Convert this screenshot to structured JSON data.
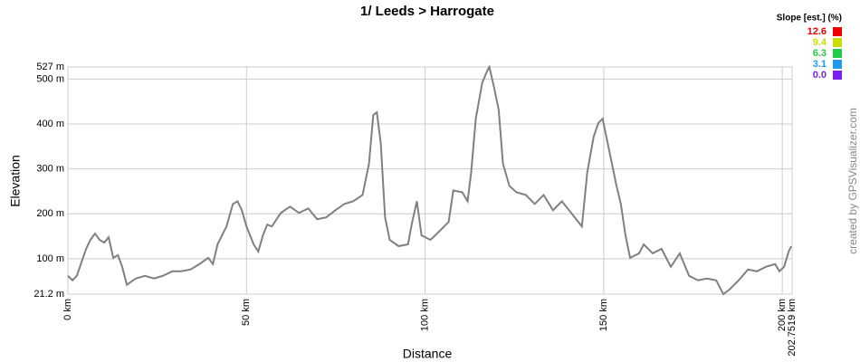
{
  "chart_data": {
    "type": "line",
    "title": "1/ Leeds > Harrogate",
    "x_label": "Distance",
    "y_label": "Elevation",
    "credit": "created by GPSVisualizer.com",
    "slope_legend": {
      "title": "Slope [est.] (%)",
      "items": [
        {
          "label": "12.6",
          "color": "#ee0000"
        },
        {
          "label": "9.4",
          "color": "#ccdd00"
        },
        {
          "label": "6.3",
          "color": "#22cc44"
        },
        {
          "label": "3.1",
          "color": "#2299ee"
        },
        {
          "label": "0.0",
          "color": "#7722ee"
        }
      ]
    },
    "x": [
      0,
      1.3,
      2.5,
      3.8,
      5.1,
      6.3,
      7.6,
      8.9,
      10.2,
      11.4,
      12.7,
      14.0,
      15.2,
      16.5,
      19.0,
      21.6,
      24.1,
      26.6,
      29.2,
      31.7,
      34.3,
      36.8,
      39.3,
      40.6,
      41.9,
      44.4,
      46.2,
      47.5,
      48.7,
      50.0,
      52.0,
      53.3,
      54.6,
      55.8,
      57.1,
      59.6,
      62.2,
      64.7,
      67.3,
      69.8,
      72.3,
      74.9,
      77.4,
      79.9,
      82.5,
      84.3,
      85.5,
      86.5,
      87.6,
      88.8,
      90.1,
      92.6,
      95.2,
      96.4,
      97.7,
      99.0,
      101.5,
      104.1,
      106.6,
      107.9,
      110.4,
      111.9,
      112.9,
      114.2,
      116.0,
      117.5,
      118.0,
      119.3,
      120.6,
      121.8,
      123.6,
      125.6,
      128.2,
      130.7,
      133.2,
      135.8,
      138.3,
      140.9,
      143.9,
      145.4,
      147.2,
      148.5,
      149.7,
      151.0,
      152.3,
      153.6,
      154.8,
      156.1,
      157.4,
      159.9,
      161.2,
      163.7,
      166.2,
      168.8,
      171.3,
      173.9,
      176.4,
      178.9,
      181.5,
      183.5,
      185.3,
      187.8,
      190.4,
      192.9,
      195.4,
      198.0,
      199.2,
      200.5,
      201.8,
      202.5
    ],
    "series": [
      {
        "color": "#808080",
        "values": [
          62,
          52,
          62,
          92,
          122,
          142,
          156,
          142,
          136,
          148,
          102,
          108,
          82,
          42,
          56,
          62,
          56,
          62,
          72,
          72,
          76,
          88,
          102,
          88,
          132,
          172,
          222,
          228,
          208,
          172,
          132,
          116,
          152,
          176,
          172,
          202,
          216,
          202,
          212,
          188,
          192,
          208,
          222,
          228,
          242,
          312,
          420,
          426,
          356,
          192,
          142,
          128,
          132,
          182,
          228,
          152,
          142,
          162,
          182,
          252,
          248,
          228,
          292,
          412,
          492,
          520,
          527,
          482,
          432,
          312,
          262,
          248,
          242,
          222,
          242,
          208,
          228,
          202,
          172,
          292,
          372,
          402,
          412,
          362,
          312,
          262,
          222,
          152,
          102,
          112,
          132,
          112,
          122,
          82,
          112,
          62,
          52,
          56,
          52,
          21.2,
          32,
          52,
          76,
          72,
          82,
          88,
          72,
          82,
          116,
          128
        ]
      }
    ],
    "xlim": [
      0,
      202.7519
    ],
    "xticks": [
      {
        "value": 0,
        "label": "0 km"
      },
      {
        "value": 50,
        "label": "50 km"
      },
      {
        "value": 100,
        "label": "100 km"
      },
      {
        "value": 150,
        "label": "150 km"
      },
      {
        "value": 200,
        "label": "200 km"
      },
      {
        "value": 202.7519,
        "label": "202.7519 km"
      }
    ],
    "ylim": [
      21.2,
      527
    ],
    "yticks": [
      {
        "value": 21.2,
        "label": "21.2 m"
      },
      {
        "value": 100,
        "label": "100 m"
      },
      {
        "value": 200,
        "label": "200 m"
      },
      {
        "value": 300,
        "label": "300 m"
      },
      {
        "value": 400,
        "label": "400 m"
      },
      {
        "value": 500,
        "label": "500 m"
      },
      {
        "value": 527,
        "label": "527 m"
      }
    ],
    "grid": true
  }
}
